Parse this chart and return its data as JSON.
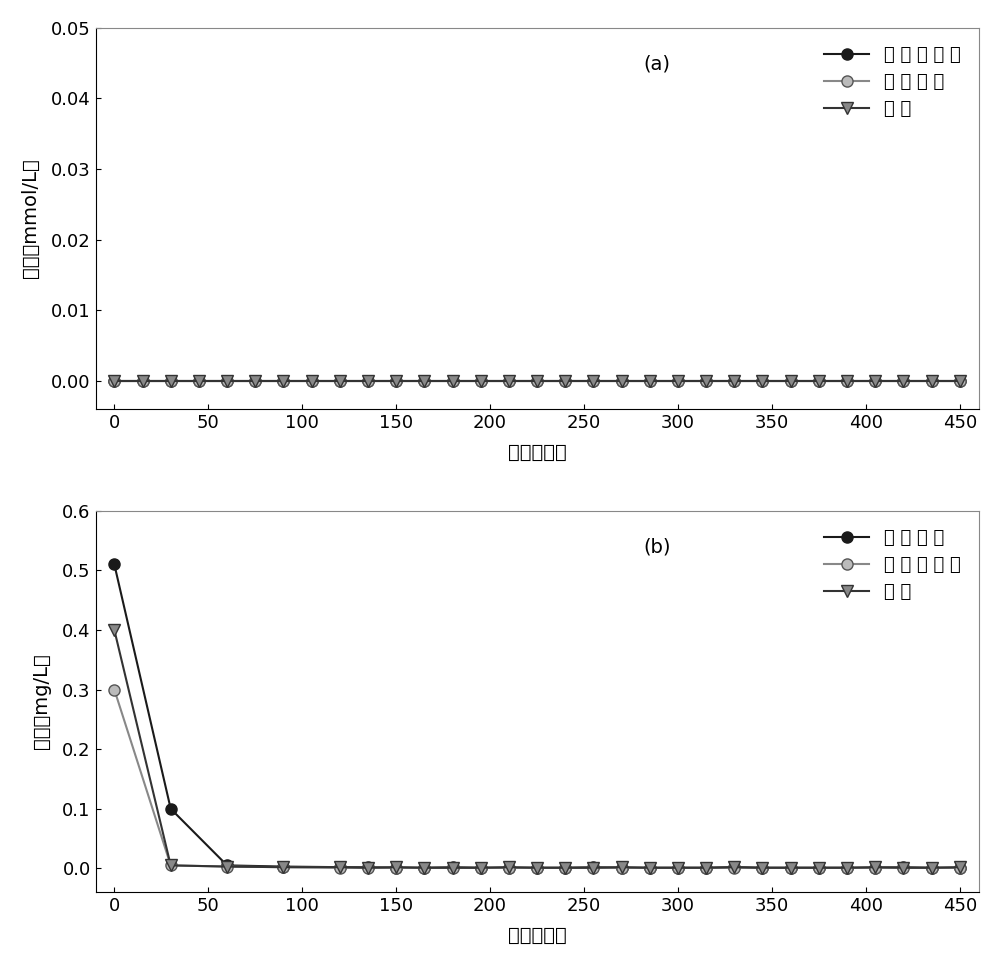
{
  "panel_a": {
    "label": "(a)",
    "ylabel": "浓度（mmol/L）",
    "xlabel": "时间（天）",
    "ylim": [
      -0.004,
      0.05
    ],
    "yticks": [
      0.0,
      0.01,
      0.02,
      0.03,
      0.04,
      0.05
    ],
    "xlim": [
      -10,
      460
    ],
    "xticks": [
      0,
      50,
      100,
      150,
      200,
      250,
      300,
      350,
      400,
      450
    ],
    "series": [
      {
        "name": "邻氯硕基苯",
        "x": [
          0,
          15,
          30,
          45,
          60,
          75,
          90,
          105,
          120,
          135,
          150,
          165,
          180,
          195,
          210,
          225,
          240,
          255,
          270,
          285,
          300,
          315,
          330,
          345,
          360,
          375,
          390,
          405,
          420,
          435,
          450
        ],
        "y": [
          0.0,
          0.0,
          0.0,
          0.0,
          0.0,
          0.0,
          0.0,
          0.0,
          0.0,
          0.0,
          0.0,
          0.0,
          0.0,
          0.0,
          0.0,
          0.0,
          0.0,
          0.0,
          0.0,
          0.0,
          0.0,
          0.0,
          0.0,
          0.0,
          0.0,
          0.0,
          0.0,
          0.0,
          0.0,
          0.0,
          0.0
        ],
        "color": "#1a1a1a",
        "marker": "o",
        "markersize": 8,
        "markerfacecolor": "#1a1a1a",
        "markeredgecolor": "#1a1a1a",
        "linewidth": 1.5
      },
      {
        "name": "邻氯苯胺",
        "x": [
          0,
          15,
          30,
          45,
          60,
          75,
          90,
          105,
          120,
          135,
          150,
          165,
          180,
          195,
          210,
          225,
          240,
          255,
          270,
          285,
          300,
          315,
          330,
          345,
          360,
          375,
          390,
          405,
          420,
          435,
          450
        ],
        "y": [
          0.0,
          0.0,
          0.0,
          0.0,
          0.0,
          0.0,
          0.0,
          0.0,
          0.0,
          0.0,
          0.0,
          0.0,
          0.0,
          0.0,
          0.0,
          0.0,
          0.0,
          0.0,
          0.0,
          0.0,
          0.0,
          0.0,
          0.0,
          0.0,
          0.0,
          0.0,
          0.0,
          0.0,
          0.0,
          0.0,
          0.0
        ],
        "color": "#888888",
        "marker": "o",
        "markersize": 8,
        "markerfacecolor": "#bbbbbb",
        "markeredgecolor": "#555555",
        "linewidth": 1.5
      },
      {
        "name": "苯胺",
        "x": [
          0,
          15,
          30,
          45,
          60,
          75,
          90,
          105,
          120,
          135,
          150,
          165,
          180,
          195,
          210,
          225,
          240,
          255,
          270,
          285,
          300,
          315,
          330,
          345,
          360,
          375,
          390,
          405,
          420,
          435,
          450
        ],
        "y": [
          0.0,
          0.0,
          0.0,
          0.0,
          0.0,
          0.0,
          0.0,
          0.0,
          0.0,
          0.0,
          0.0,
          0.0,
          0.0,
          0.0,
          0.0,
          0.0,
          0.0,
          0.0,
          0.0,
          0.0,
          0.0,
          0.0,
          0.0,
          0.0,
          0.0,
          0.0,
          0.0,
          0.0,
          0.0,
          0.0,
          0.0
        ],
        "color": "#333333",
        "marker": "v",
        "markersize": 9,
        "markerfacecolor": "#888888",
        "markeredgecolor": "#333333",
        "linewidth": 1.5
      }
    ]
  },
  "panel_b": {
    "label": "(b)",
    "ylabel": "浓度（mg/L）",
    "xlabel": "时间（天）",
    "ylim": [
      -0.04,
      0.6
    ],
    "yticks": [
      0.0,
      0.1,
      0.2,
      0.3,
      0.4,
      0.5,
      0.6
    ],
    "xlim": [
      -10,
      460
    ],
    "xticks": [
      0,
      50,
      100,
      150,
      200,
      250,
      300,
      350,
      400,
      450
    ],
    "series": [
      {
        "name": "确酸盐氮",
        "x": [
          0,
          30,
          60,
          90,
          120,
          135,
          150,
          165,
          180,
          195,
          210,
          225,
          240,
          255,
          270,
          285,
          300,
          315,
          330,
          345,
          360,
          375,
          390,
          405,
          420,
          435,
          450
        ],
        "y": [
          0.51,
          0.1,
          0.005,
          0.003,
          0.002,
          0.002,
          0.001,
          0.001,
          0.002,
          0.001,
          0.001,
          0.001,
          0.001,
          0.002,
          0.001,
          0.001,
          0.001,
          0.001,
          0.002,
          0.001,
          0.001,
          0.001,
          0.001,
          0.001,
          0.002,
          0.001,
          0.001
        ],
        "color": "#1a1a1a",
        "marker": "o",
        "markersize": 8,
        "markerfacecolor": "#1a1a1a",
        "markeredgecolor": "#1a1a1a",
        "linewidth": 1.5
      },
      {
        "name": "亚确酸盐氮",
        "x": [
          0,
          30,
          60,
          90,
          120,
          135,
          150,
          165,
          180,
          195,
          210,
          225,
          240,
          255,
          270,
          285,
          300,
          315,
          330,
          345,
          360,
          375,
          390,
          405,
          420,
          435,
          450
        ],
        "y": [
          0.3,
          0.005,
          0.003,
          0.002,
          0.001,
          0.001,
          0.001,
          0.001,
          0.001,
          0.001,
          0.001,
          0.001,
          0.001,
          0.001,
          0.001,
          0.001,
          0.001,
          0.001,
          0.001,
          0.001,
          0.001,
          0.001,
          0.001,
          0.001,
          0.001,
          0.001,
          0.001
        ],
        "color": "#888888",
        "marker": "o",
        "markersize": 8,
        "markerfacecolor": "#bbbbbb",
        "markeredgecolor": "#555555",
        "linewidth": 1.5
      },
      {
        "name": "氨氮",
        "x": [
          0,
          30,
          60,
          90,
          120,
          135,
          150,
          165,
          180,
          195,
          210,
          225,
          240,
          255,
          270,
          285,
          300,
          315,
          330,
          345,
          360,
          375,
          390,
          405,
          420,
          435,
          450
        ],
        "y": [
          0.4,
          0.005,
          0.003,
          0.002,
          0.002,
          0.001,
          0.002,
          0.001,
          0.001,
          0.001,
          0.002,
          0.001,
          0.001,
          0.001,
          0.002,
          0.001,
          0.001,
          0.001,
          0.002,
          0.001,
          0.001,
          0.001,
          0.001,
          0.002,
          0.001,
          0.001,
          0.002
        ],
        "color": "#333333",
        "marker": "v",
        "markersize": 9,
        "markerfacecolor": "#888888",
        "markeredgecolor": "#333333",
        "linewidth": 1.5
      }
    ]
  },
  "legend_a": [
    "邻 氯 硕 基 苯",
    "邻 氯 苯 胺",
    "苯 胺"
  ],
  "legend_b": [
    "确 酸 盐 氮",
    "亚 确 酸 盐 氮",
    "氨 氮"
  ]
}
